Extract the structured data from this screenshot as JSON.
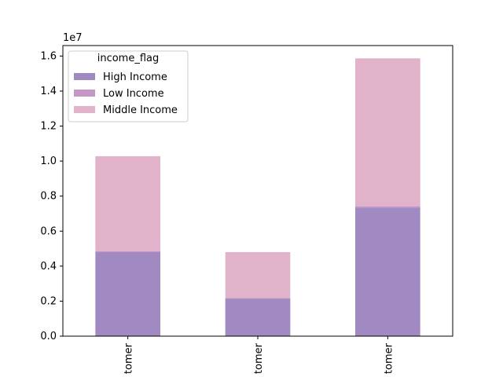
{
  "chart_data": {
    "type": "bar",
    "stacked": true,
    "categories": [
      "tomer",
      "tomer",
      "tomer"
    ],
    "series": [
      {
        "name": "High Income",
        "values": [
          4800000,
          2150000,
          7350000
        ],
        "color": "#a189c1"
      },
      {
        "name": "Low Income",
        "values": [
          60000,
          30000,
          70000
        ],
        "color": "#c497c7"
      },
      {
        "name": "Middle Income",
        "values": [
          5420000,
          2620000,
          8450000
        ],
        "color": "#e0b3cb"
      }
    ],
    "ylim": [
      0,
      16600000
    ],
    "yticks": [
      0,
      2000000,
      4000000,
      6000000,
      8000000,
      10000000,
      12000000,
      14000000,
      16000000
    ],
    "ytick_labels": [
      "0.0",
      "0.2",
      "0.4",
      "0.6",
      "0.8",
      "1.0",
      "1.2",
      "1.4",
      "1.6"
    ],
    "offset_label": "1e7",
    "legend": {
      "title": "income_flag",
      "position": "top-left"
    },
    "grid": false
  }
}
